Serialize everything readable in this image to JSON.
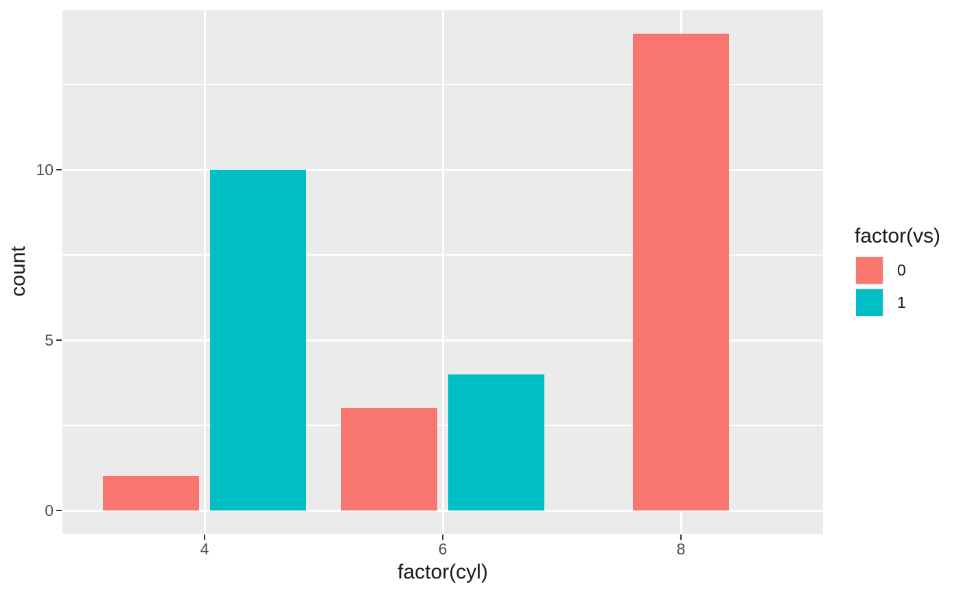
{
  "chart_data": {
    "type": "bar",
    "title": "",
    "xlabel": "factor(cyl)",
    "ylabel": "count",
    "categories": [
      "4",
      "6",
      "8"
    ],
    "series": [
      {
        "name": "0",
        "color": "#F8766D",
        "values": [
          1,
          3,
          14
        ]
      },
      {
        "name": "1",
        "color": "#00BFC4",
        "values": [
          10,
          4,
          0
        ]
      }
    ],
    "legend": {
      "title": "factor(vs)",
      "position": "right",
      "entries": [
        "0",
        "1"
      ]
    },
    "y_axis": {
      "major_ticks": [
        0,
        5,
        10
      ],
      "minor_ticks": [
        2.5,
        7.5,
        12.5
      ],
      "range": [
        -0.7,
        14.7
      ]
    },
    "x_axis": {
      "ticks": [
        "4",
        "6",
        "8"
      ]
    },
    "grid": {
      "show": true,
      "major_color": "#FFFFFF",
      "minor_color": "#FFFFFF"
    },
    "style": {
      "panel_bg": "#EBEBEB",
      "tick_label_color": "#4D4D4D",
      "title_color": "#1A1A1A",
      "tick_mark_color": "#333333",
      "dodge": true
    }
  }
}
